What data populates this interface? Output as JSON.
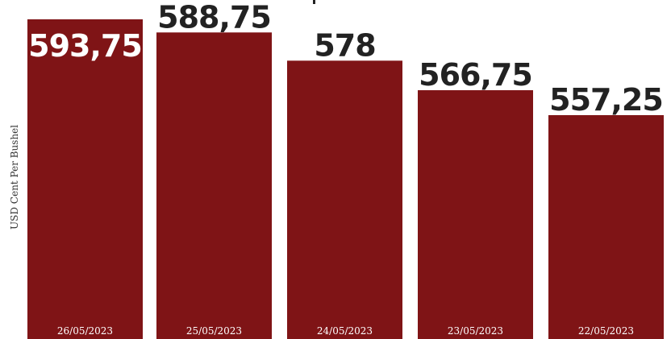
{
  "chart_data": {
    "type": "bar",
    "ylabel": "USD Cent Per Bushel",
    "categories": [
      "26/05/2023",
      "25/05/2023",
      "24/05/2023",
      "23/05/2023",
      "22/05/2023"
    ],
    "values": [
      593.75,
      588.75,
      578,
      566.75,
      557.25
    ],
    "value_labels": [
      "593,75",
      "588,75",
      "578",
      "566,75",
      "557,25"
    ],
    "bar_color": "#7f1416",
    "grid": false,
    "legend": "none"
  }
}
